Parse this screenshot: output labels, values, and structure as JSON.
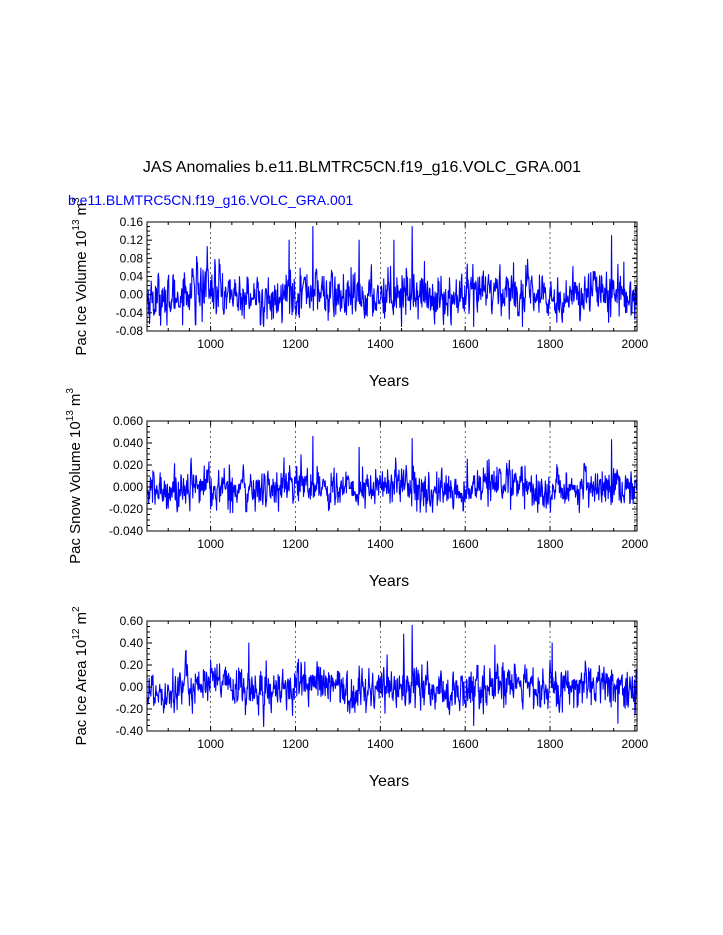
{
  "main_title": "JAS Anomalies b.e11.BLMTRC5CN.f19_g16.VOLC_GRA.001",
  "subtitle": "b.e11.BLMTRC5CN.f19_g16.VOLC_GRA.001",
  "colors": {
    "line": "#0000ff",
    "subtitle": "#0000ff",
    "axis": "#000000",
    "grid": "#000000"
  },
  "chart_data": [
    {
      "type": "line",
      "ylabel": {
        "prefix": "Pac Ice Volume 10",
        "exp": "13",
        "unit": "m",
        "unit_exp": "3"
      },
      "xlabel": "Years",
      "xlim": [
        850,
        2005
      ],
      "ylim": [
        -0.08,
        0.16
      ],
      "xticks": [
        1000,
        1200,
        1400,
        1600,
        1800,
        2000
      ],
      "xtick_labels": [
        "1000",
        "1200",
        "1400",
        "1600",
        "1800",
        "2000"
      ],
      "yticks": [
        -0.08,
        -0.04,
        0.0,
        0.04,
        0.08,
        0.12,
        0.16
      ],
      "ytick_labels": [
        "-0.08",
        "-0.04",
        "0.00",
        "0.04",
        "0.08",
        "0.12",
        "0.16"
      ],
      "grid": "dashed vertical at x ticks",
      "series": {
        "name": "Pac Ice Volume anomaly",
        "x_start": 850,
        "x_end": 2005,
        "points": 1156,
        "mean": 0.0,
        "std": 0.026,
        "peaks": [
          [
            1241,
            0.15
          ],
          [
            1475,
            0.15
          ],
          [
            1350,
            0.12
          ],
          [
            1185,
            0.12
          ],
          [
            1945,
            0.13
          ],
          [
            1432,
            0.12
          ]
        ],
        "troughs": [
          [
            1125,
            -0.07
          ],
          [
            1450,
            -0.07
          ],
          [
            1620,
            -0.07
          ],
          [
            1735,
            -0.07
          ]
        ]
      }
    },
    {
      "type": "line",
      "ylabel": {
        "prefix": "Pac Snow Volume 10",
        "exp": "13",
        "unit": "m",
        "unit_exp": "3"
      },
      "xlabel": "Years",
      "xlim": [
        850,
        2005
      ],
      "ylim": [
        -0.04,
        0.06
      ],
      "xticks": [
        1000,
        1200,
        1400,
        1600,
        1800,
        2000
      ],
      "xtick_labels": [
        "1000",
        "1200",
        "1400",
        "1600",
        "1800",
        "2000"
      ],
      "yticks": [
        -0.04,
        -0.02,
        0.0,
        0.02,
        0.04,
        0.06
      ],
      "ytick_labels": [
        "-0.040",
        "-0.020",
        "0.000",
        "0.020",
        "0.040",
        "0.060"
      ],
      "grid": "dashed vertical at x ticks",
      "series": {
        "name": "Pac Snow Volume anomaly",
        "x_start": 850,
        "x_end": 2005,
        "points": 1156,
        "mean": 0.0,
        "std": 0.009,
        "peaks": [
          [
            1241,
            0.046
          ],
          [
            1475,
            0.044
          ],
          [
            1945,
            0.043
          ],
          [
            1350,
            0.036
          ]
        ],
        "troughs": [
          [
            1000,
            -0.02
          ],
          [
            1280,
            -0.02
          ],
          [
            1740,
            -0.02
          ]
        ]
      }
    },
    {
      "type": "line",
      "ylabel": {
        "prefix": "Pac Ice Area 10",
        "exp": "12",
        "unit": "m",
        "unit_exp": "2"
      },
      "xlabel": "Years",
      "xlim": [
        850,
        2005
      ],
      "ylim": [
        -0.4,
        0.6
      ],
      "xticks": [
        1000,
        1200,
        1400,
        1600,
        1800,
        2000
      ],
      "xtick_labels": [
        "1000",
        "1200",
        "1400",
        "1600",
        "1800",
        "2000"
      ],
      "yticks": [
        -0.4,
        -0.2,
        0.0,
        0.2,
        0.4,
        0.6
      ],
      "ytick_labels": [
        "-0.40",
        "-0.20",
        "0.00",
        "0.20",
        "0.40",
        "0.60"
      ],
      "grid": "dashed vertical at x ticks",
      "series": {
        "name": "Pac Ice Area anomaly",
        "x_start": 850,
        "x_end": 2005,
        "points": 1156,
        "mean": 0.0,
        "std": 0.1,
        "peaks": [
          [
            1475,
            0.56
          ],
          [
            1455,
            0.48
          ],
          [
            1805,
            0.4
          ],
          [
            1090,
            0.4
          ],
          [
            1670,
            0.38
          ]
        ],
        "troughs": [
          [
            1125,
            -0.36
          ],
          [
            1620,
            -0.35
          ],
          [
            1960,
            -0.33
          ]
        ]
      }
    }
  ]
}
